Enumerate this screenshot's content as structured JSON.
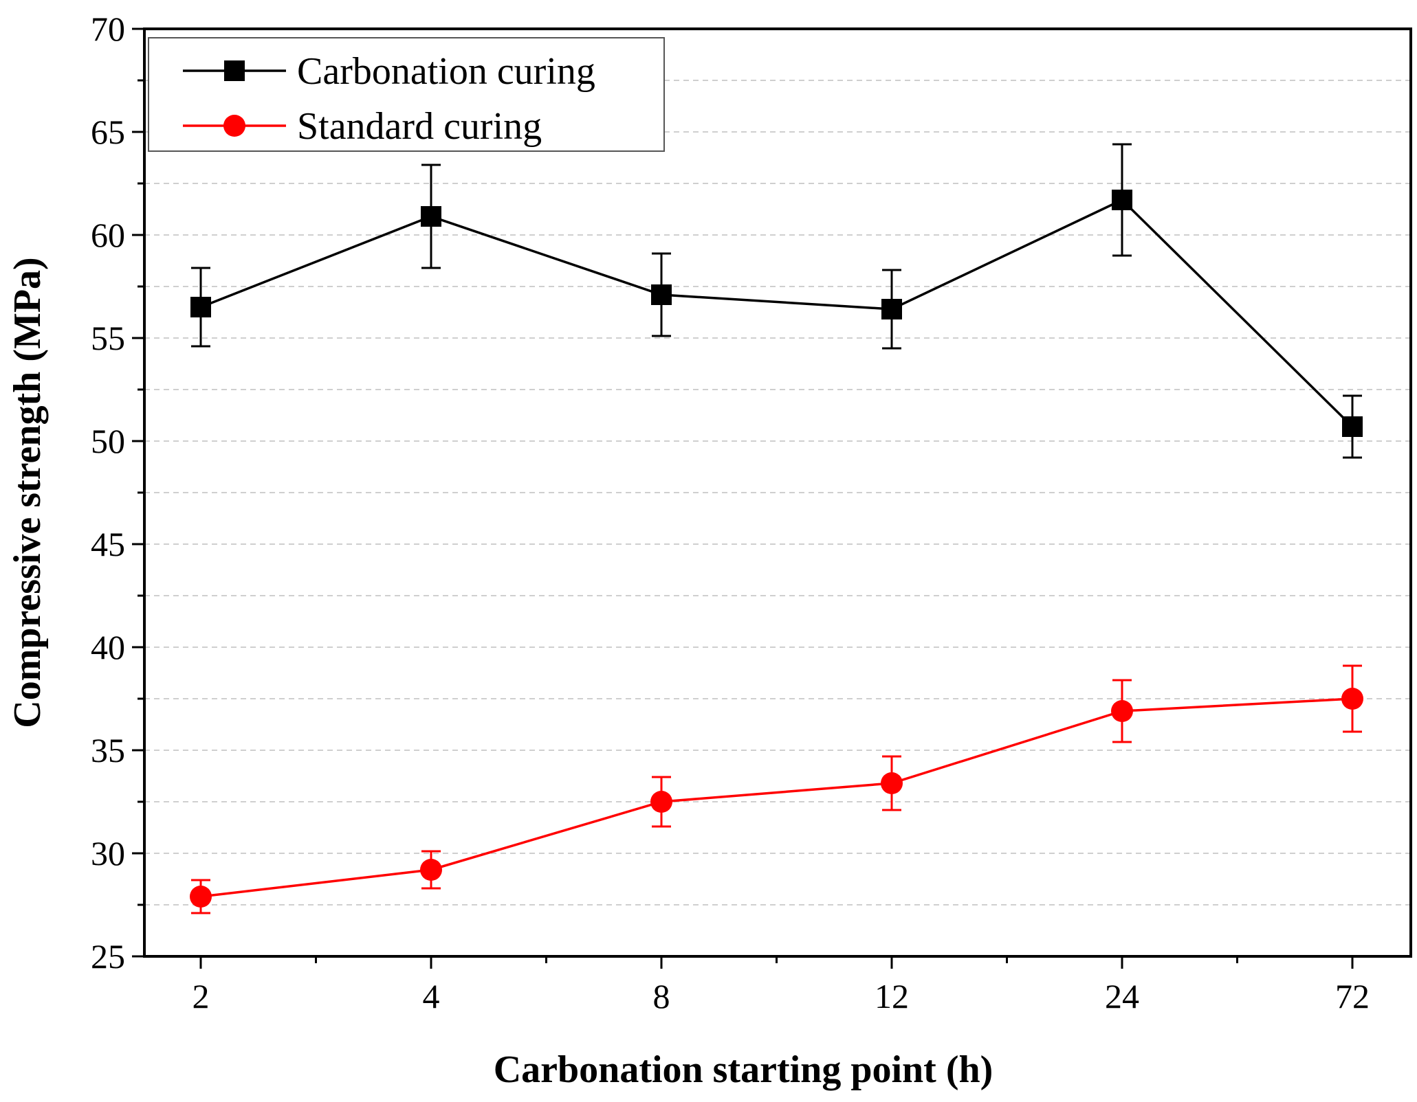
{
  "chart_data": {
    "type": "line",
    "title": "",
    "xlabel": "Carbonation starting point (h)",
    "ylabel": "Compressive strength (MPa)",
    "categories": [
      "2",
      "4",
      "8",
      "12",
      "24",
      "72"
    ],
    "ylim": [
      25,
      70
    ],
    "yticks": [
      25,
      30,
      35,
      40,
      45,
      50,
      55,
      60,
      65,
      70
    ],
    "grid": "horizontal dashed at minor and major ticks",
    "legend_position": "top-left",
    "series": [
      {
        "name": "Carbonation curing",
        "color": "#000000",
        "marker": "square",
        "values": [
          56.5,
          60.9,
          57.1,
          56.4,
          61.7,
          50.7
        ],
        "errors": [
          1.9,
          2.5,
          2.0,
          1.9,
          2.7,
          1.5
        ]
      },
      {
        "name": "Standard curing",
        "color": "#ff0000",
        "marker": "circle",
        "values": [
          27.9,
          29.2,
          32.5,
          33.4,
          36.9,
          37.5
        ],
        "errors": [
          0.8,
          0.9,
          1.2,
          1.3,
          1.5,
          1.6
        ]
      }
    ]
  }
}
